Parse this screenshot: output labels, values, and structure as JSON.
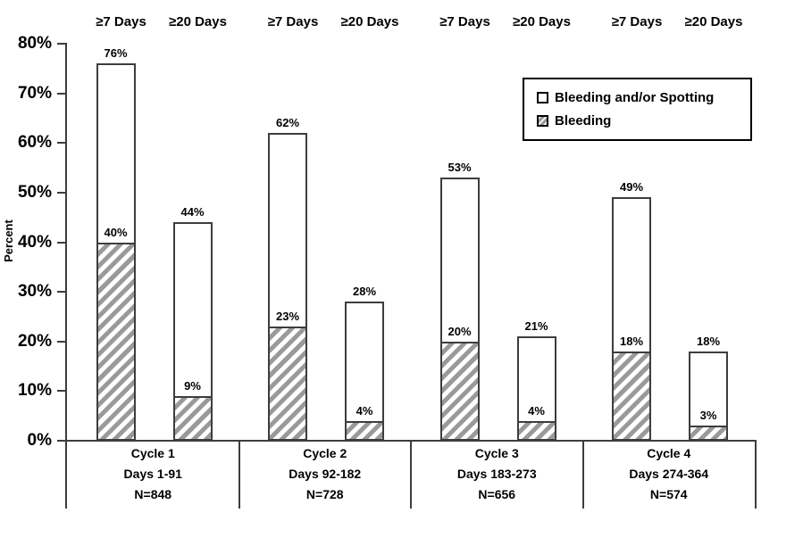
{
  "chart_data": {
    "type": "bar",
    "stacked": true,
    "title": "",
    "ylabel": "Percent",
    "ylim": [
      0,
      80
    ],
    "ytick_step": 10,
    "ytick_suffix": "%",
    "grid": false,
    "legend_position": "upper-right",
    "legend": [
      {
        "label": "Bleeding and/or Spotting",
        "style": "white"
      },
      {
        "label": "Bleeding",
        "style": "hatched"
      }
    ],
    "column_headers": [
      "≥7 Days",
      "≥20 Days"
    ],
    "value_suffix": "%",
    "groups": [
      {
        "cycle": "Cycle 1",
        "days": "Days 1-91",
        "n": "N=848",
        "bars": [
          {
            "header": "≥7 Days",
            "total": 76,
            "bleeding": 40
          },
          {
            "header": "≥20 Days",
            "total": 44,
            "bleeding": 9
          }
        ]
      },
      {
        "cycle": "Cycle 2",
        "days": "Days 92-182",
        "n": "N=728",
        "bars": [
          {
            "header": "≥7 Days",
            "total": 62,
            "bleeding": 23
          },
          {
            "header": "≥20 Days",
            "total": 28,
            "bleeding": 4
          }
        ]
      },
      {
        "cycle": "Cycle 3",
        "days": "Days 183-273",
        "n": "N=656",
        "bars": [
          {
            "header": "≥7 Days",
            "total": 53,
            "bleeding": 20
          },
          {
            "header": "≥20 Days",
            "total": 21,
            "bleeding": 4
          }
        ]
      },
      {
        "cycle": "Cycle 4",
        "days": "Days 274-364",
        "n": "N=574",
        "bars": [
          {
            "header": "≥7 Days",
            "total": 49,
            "bleeding": 18
          },
          {
            "header": "≥20 Days",
            "total": 18,
            "bleeding": 3
          }
        ]
      }
    ]
  },
  "colors": {
    "hatch_stripe": "#9a9a9a",
    "bar_fill": "#ffffff",
    "bar_border": "#3d3d3d",
    "axis": "#3d3d3d",
    "text": "#000000"
  }
}
